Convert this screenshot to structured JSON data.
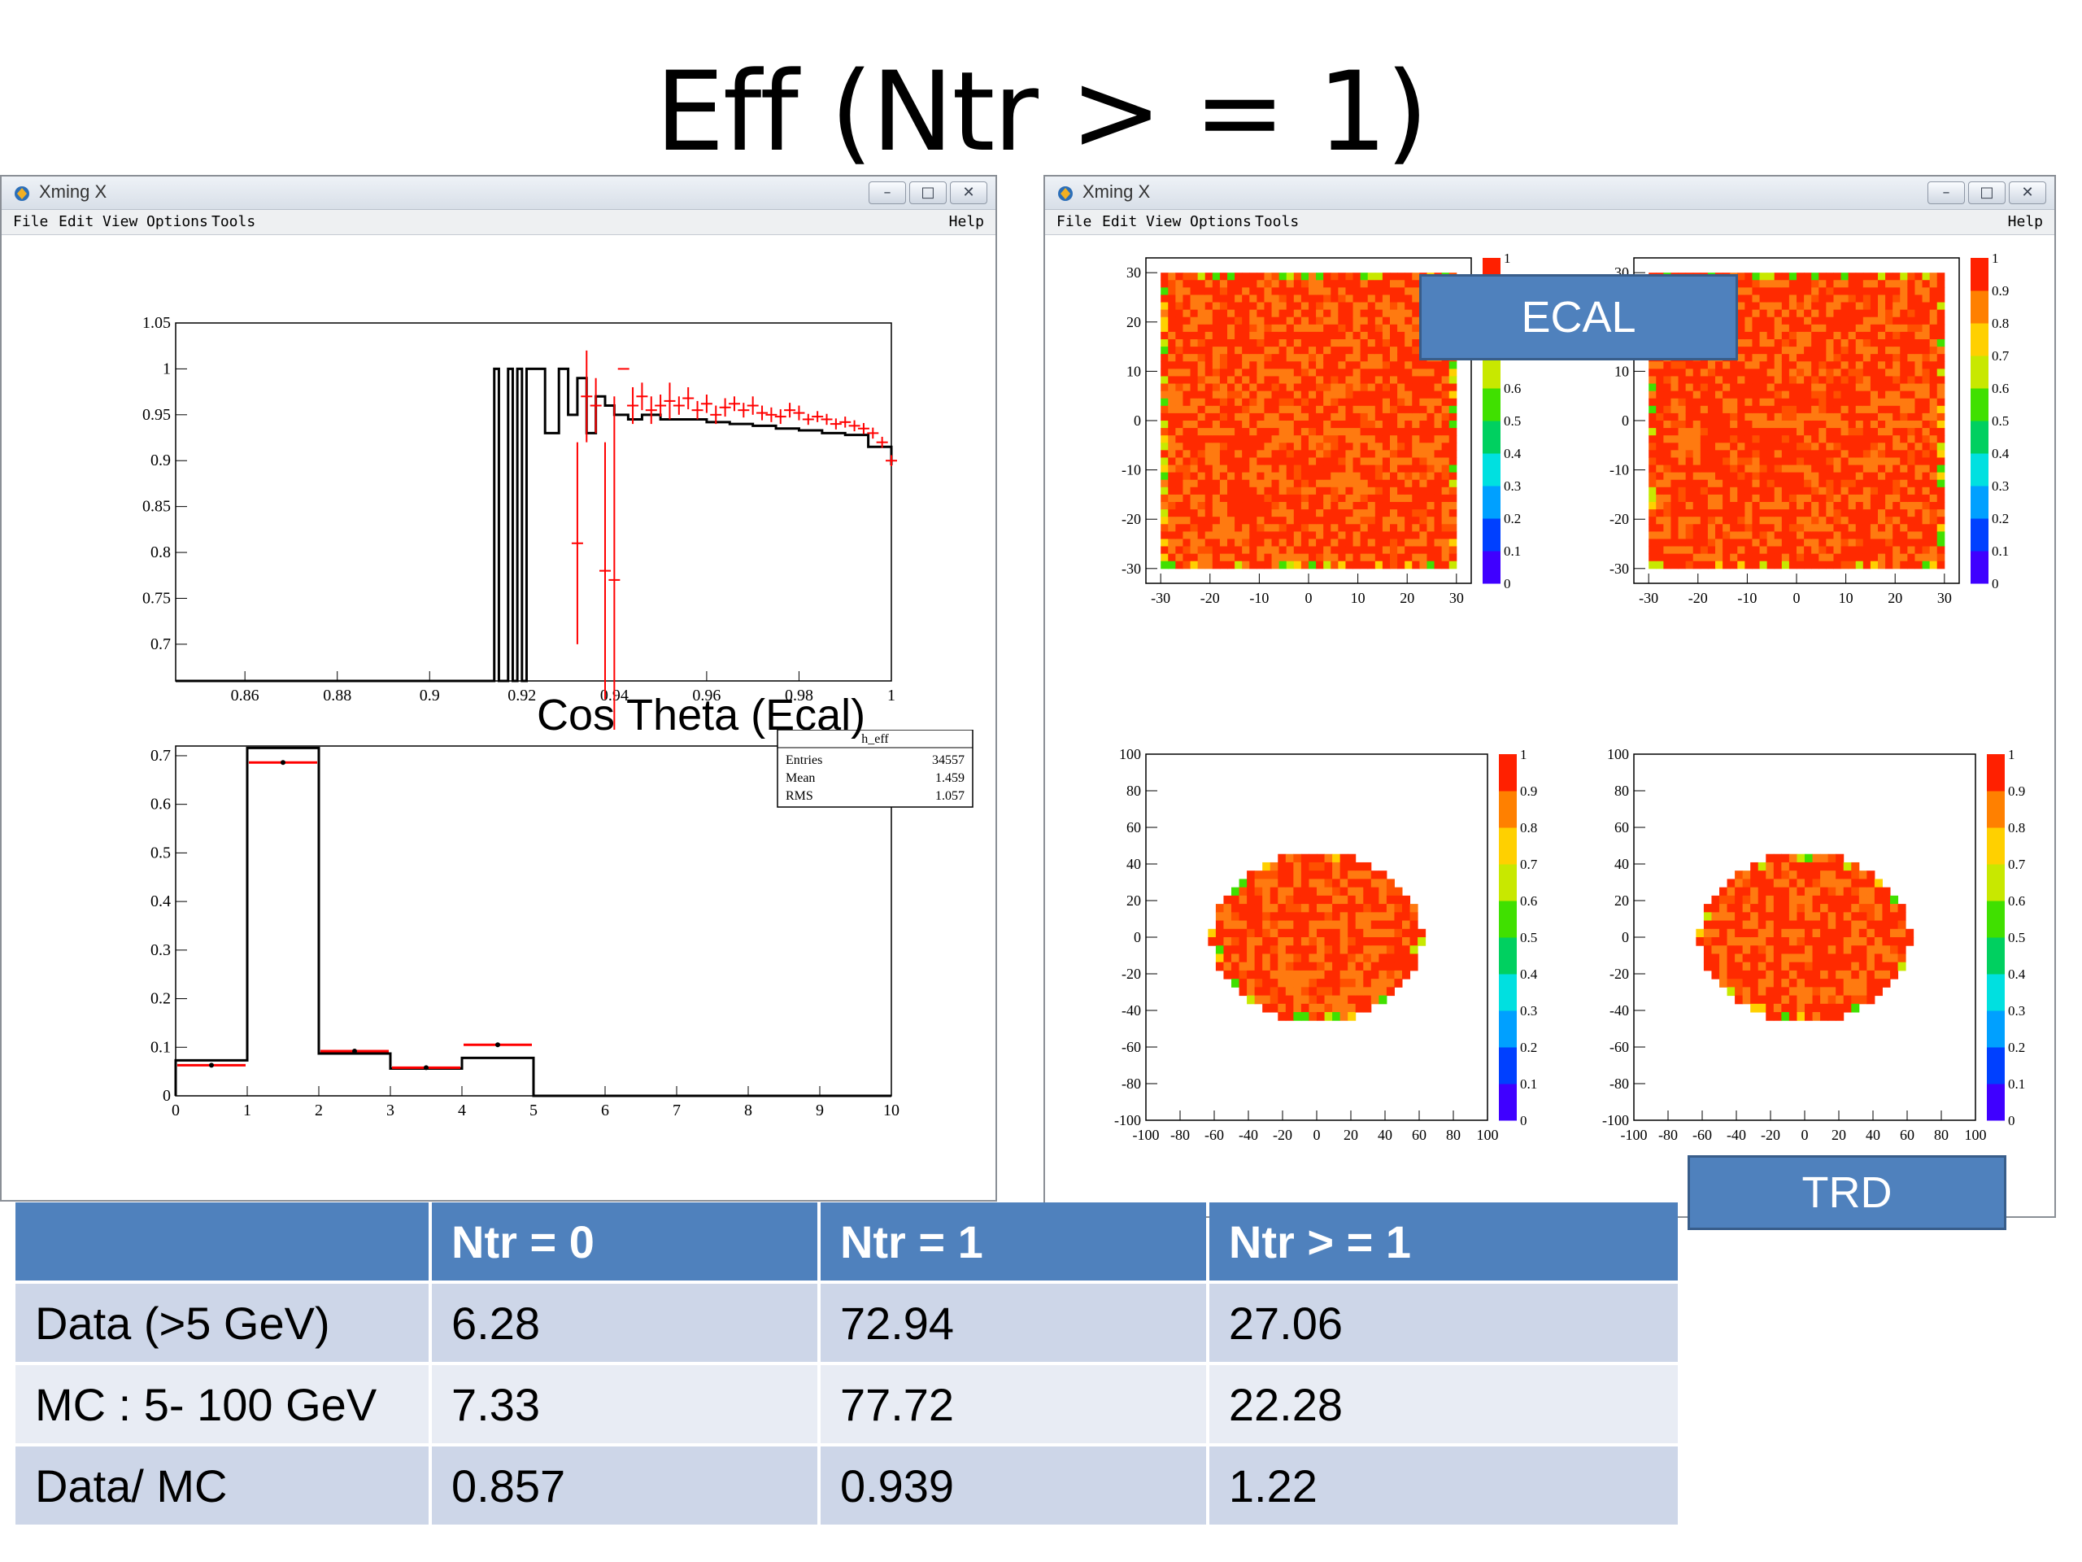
{
  "slide_title": "Eff (Ntr > = 1)",
  "windows": [
    {
      "title": "Xming X",
      "menu": [
        "File",
        "Edit",
        "View",
        "Options",
        "Tools"
      ],
      "help": "Help",
      "buttons": {
        "minimize": "–",
        "maximize": "□",
        "close": "✕"
      }
    },
    {
      "title": "Xming X",
      "menu": [
        "File",
        "Edit",
        "View",
        "Options",
        "Tools"
      ],
      "help": "Help",
      "buttons": {
        "minimize": "–",
        "maximize": "□",
        "close": "✕"
      }
    }
  ],
  "left_label": "Cos Theta (Ecal)",
  "callouts": {
    "ecal": "ECAL",
    "trd": "TRD"
  },
  "stats_box": {
    "name": "h_eff",
    "rows": [
      {
        "label": "Entries",
        "value": "34557"
      },
      {
        "label": "Mean",
        "value": "1.459"
      },
      {
        "label": "RMS",
        "value": "1.057"
      }
    ]
  },
  "colors": {
    "mc_line": "#000000",
    "data_points": "#ff0000",
    "callout": "#4f81bd",
    "table_header": "#4f81bd"
  },
  "chart_data": [
    {
      "type": "line",
      "x_ticks": [
        "0.86",
        "0.88",
        "0.9",
        "0.92",
        "0.94",
        "0.96",
        "0.98",
        "1"
      ],
      "y_ticks": [
        "0.7",
        "0.75",
        "0.8",
        "0.85",
        "0.9",
        "0.95",
        "1",
        "1.05"
      ],
      "xlim": [
        0.845,
        1.0
      ],
      "ylim": [
        0.66,
        1.05
      ],
      "series": [
        {
          "x": [
            0.845,
            0.913,
            0.914,
            0.915,
            0.917,
            0.918,
            0.919,
            0.92,
            0.921,
            0.923,
            0.925,
            0.928,
            0.93,
            0.932,
            0.934,
            0.936,
            0.938,
            0.94,
            0.943,
            0.946,
            0.95,
            0.955,
            0.96,
            0.965,
            0.97,
            0.975,
            0.98,
            0.985,
            0.99,
            0.995,
            1.0
          ],
          "y": [
            0.66,
            0.66,
            1.0,
            0.66,
            1.0,
            0.66,
            1.0,
            0.66,
            1.0,
            1.0,
            0.93,
            1.0,
            0.95,
            0.99,
            0.93,
            0.97,
            0.96,
            0.95,
            0.945,
            0.95,
            0.945,
            0.945,
            0.942,
            0.94,
            0.938,
            0.935,
            0.933,
            0.93,
            0.928,
            0.915,
            0.895
          ]
        },
        {
          "x": [
            0.932,
            0.934,
            0.936,
            0.938,
            0.94,
            0.942,
            0.944,
            0.946,
            0.948,
            0.95,
            0.952,
            0.954,
            0.956,
            0.958,
            0.96,
            0.962,
            0.964,
            0.966,
            0.968,
            0.97,
            0.972,
            0.974,
            0.976,
            0.978,
            0.98,
            0.982,
            0.984,
            0.986,
            0.988,
            0.99,
            0.992,
            0.994,
            0.996,
            0.998,
            1.0
          ],
          "y": [
            0.81,
            0.97,
            0.96,
            0.78,
            0.77,
            1.0,
            0.96,
            0.97,
            0.955,
            0.96,
            0.965,
            0.96,
            0.968,
            0.955,
            0.962,
            0.95,
            0.958,
            0.962,
            0.955,
            0.96,
            0.952,
            0.95,
            0.948,
            0.955,
            0.952,
            0.945,
            0.948,
            0.945,
            0.94,
            0.942,
            0.938,
            0.935,
            0.93,
            0.92,
            0.9
          ],
          "yerr": [
            0.11,
            0.05,
            0.03,
            0.14,
            0.2,
            0.0,
            0.02,
            0.015,
            0.015,
            0.012,
            0.02,
            0.01,
            0.012,
            0.01,
            0.01,
            0.01,
            0.01,
            0.008,
            0.008,
            0.01,
            0.008,
            0.008,
            0.008,
            0.008,
            0.008,
            0.006,
            0.006,
            0.006,
            0.006,
            0.006,
            0.006,
            0.006,
            0.006,
            0.006,
            0.006
          ]
        }
      ]
    },
    {
      "type": "bar",
      "x_ticks": [
        "0",
        "1",
        "2",
        "3",
        "4",
        "5",
        "6",
        "7",
        "8",
        "9",
        "10"
      ],
      "y_ticks": [
        "0",
        "0.1",
        "0.2",
        "0.3",
        "0.4",
        "0.5",
        "0.6",
        "0.7"
      ],
      "xlim": [
        0,
        10
      ],
      "ylim": [
        0,
        0.72
      ],
      "categories": [
        "0",
        "1",
        "2",
        "3",
        "4",
        "5",
        "6",
        "7",
        "8",
        "9"
      ],
      "series": [
        {
          "values": [
            0.073,
            0.716,
            0.087,
            0.056,
            0.078,
            0,
            0,
            0,
            0,
            0
          ]
        },
        {
          "values": [
            0.063,
            0.686,
            0.092,
            0.058,
            0.105,
            0,
            0,
            0,
            0,
            0
          ]
        }
      ]
    },
    {
      "type": "heatmap",
      "x_ticks": [
        "-30",
        "-20",
        "-10",
        "0",
        "10",
        "20",
        "30"
      ],
      "y_ticks": [
        "-30",
        "-20",
        "-10",
        "0",
        "10",
        "20",
        "30"
      ],
      "xlim": [
        -33,
        33
      ],
      "ylim": [
        -33,
        33
      ],
      "colorbar_ticks": [
        "0",
        "0.1",
        "0.2",
        "0.3",
        "0.4",
        "0.5",
        "0.6",
        "0.7",
        "0.8",
        "0.9",
        "1"
      ],
      "region": "square",
      "mean_value": 0.92
    },
    {
      "type": "heatmap",
      "x_ticks": [
        "-30",
        "-20",
        "-10",
        "0",
        "10",
        "20",
        "30"
      ],
      "y_ticks": [
        "-30",
        "-20",
        "-10",
        "0",
        "10",
        "20",
        "30"
      ],
      "xlim": [
        -33,
        33
      ],
      "ylim": [
        -33,
        33
      ],
      "colorbar_ticks": [
        "0",
        "0.1",
        "0.2",
        "0.3",
        "0.4",
        "0.5",
        "0.6",
        "0.7",
        "0.8",
        "0.9",
        "1"
      ],
      "region": "square",
      "mean_value": 0.95
    },
    {
      "type": "heatmap",
      "x_ticks": [
        "-100",
        "-80",
        "-60",
        "-40",
        "-20",
        "0",
        "20",
        "40",
        "60",
        "80",
        "100"
      ],
      "y_ticks": [
        "-100",
        "-80",
        "-60",
        "-40",
        "-20",
        "0",
        "20",
        "40",
        "60",
        "80",
        "100"
      ],
      "xlim": [
        -100,
        100
      ],
      "ylim": [
        -100,
        100
      ],
      "colorbar_ticks": [
        "0",
        "0.1",
        "0.2",
        "0.3",
        "0.4",
        "0.5",
        "0.6",
        "0.7",
        "0.8",
        "0.9",
        "1"
      ],
      "region": "ellipse",
      "mean_value": 0.9
    },
    {
      "type": "heatmap",
      "x_ticks": [
        "-100",
        "-80",
        "-60",
        "-40",
        "-20",
        "0",
        "20",
        "40",
        "60",
        "80",
        "100"
      ],
      "y_ticks": [
        "-100",
        "-80",
        "-60",
        "-40",
        "-20",
        "0",
        "20",
        "40",
        "60",
        "80",
        "100"
      ],
      "xlim": [
        -100,
        100
      ],
      "ylim": [
        -100,
        100
      ],
      "colorbar_ticks": [
        "0",
        "0.1",
        "0.2",
        "0.3",
        "0.4",
        "0.5",
        "0.6",
        "0.7",
        "0.8",
        "0.9",
        "1"
      ],
      "region": "ellipse",
      "mean_value": 0.94
    }
  ],
  "table": {
    "headers": [
      "",
      "Ntr = 0",
      "Ntr  = 1",
      "Ntr > = 1"
    ],
    "rows": [
      [
        "Data  (>5 GeV)",
        "6.28",
        "72.94",
        "27.06"
      ],
      [
        "MC  : 5- 100 GeV",
        "7.33",
        "77.72",
        "22.28"
      ],
      [
        "Data/ MC",
        "0.857",
        "0.939",
        "1.22"
      ]
    ]
  }
}
